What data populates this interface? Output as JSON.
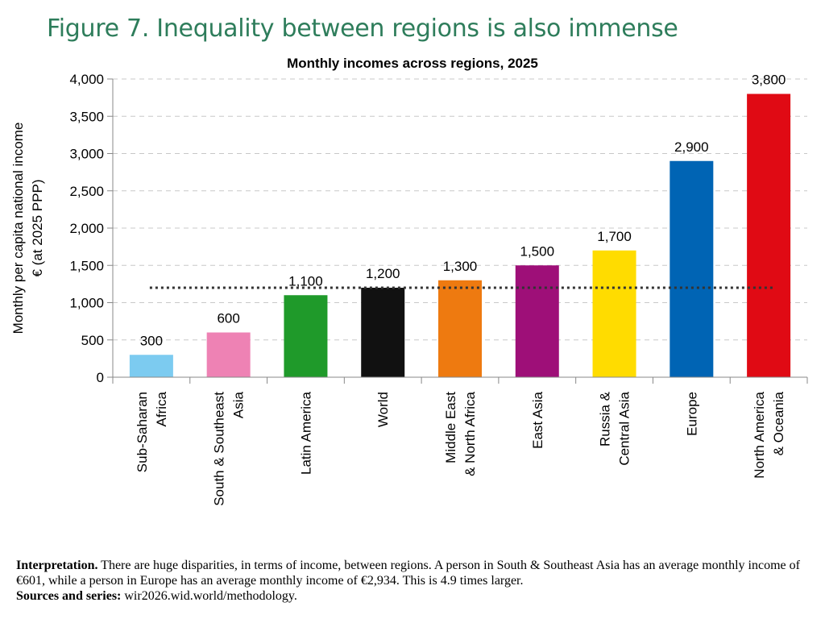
{
  "figure_title": "Figure 7. Inequality between regions is also immense",
  "chart_data": {
    "type": "bar",
    "title": "Monthly incomes across regions, 2025",
    "ylabel_lines": [
      "Monthly per capita national income",
      "€ (at 2025 PPP)"
    ],
    "xlabel": "",
    "ylim": [
      0,
      4000
    ],
    "yticks": [
      "0",
      "500",
      "1,000",
      "1,500",
      "2,000",
      "2,500",
      "3,000",
      "3,500",
      "4,000"
    ],
    "ytick_values": [
      0,
      500,
      1000,
      1500,
      2000,
      2500,
      3000,
      3500,
      4000
    ],
    "grid": true,
    "reference_line": {
      "value": 1200,
      "style": "dotted",
      "color": "#333333"
    },
    "categories": [
      [
        "Sub-Saharan",
        "Africa"
      ],
      [
        "South & Southeast",
        "Asia"
      ],
      [
        "Latin America"
      ],
      [
        "World"
      ],
      [
        "Middle East",
        "& North Africa"
      ],
      [
        "East Asia"
      ],
      [
        "Russia &",
        "Central Asia"
      ],
      [
        "Europe"
      ],
      [
        "North America",
        "& Oceania"
      ]
    ],
    "values": [
      300,
      600,
      1100,
      1200,
      1300,
      1500,
      1700,
      2900,
      3800
    ],
    "value_labels": [
      "300",
      "600",
      "1,100",
      "1,200",
      "1,300",
      "1,500",
      "1,700",
      "2,900",
      "3,800"
    ],
    "colors": [
      "#7ccbf0",
      "#ee82b4",
      "#1f9a2a",
      "#111111",
      "#ee7a10",
      "#9e0f78",
      "#ffdc00",
      "#0064b4",
      "#e00a14"
    ]
  },
  "footnote": {
    "interp_label": "Interpretation.",
    "interp_text": " There are huge disparities, in terms of income, between regions. A person in South & Southeast Asia has an average monthly income of €601, while a person in Europe has an average monthly income of €2,934. This is 4.9 times larger.",
    "sources_label": "Sources and series:",
    "sources_text": " wir2026.wid.world/methodology."
  }
}
